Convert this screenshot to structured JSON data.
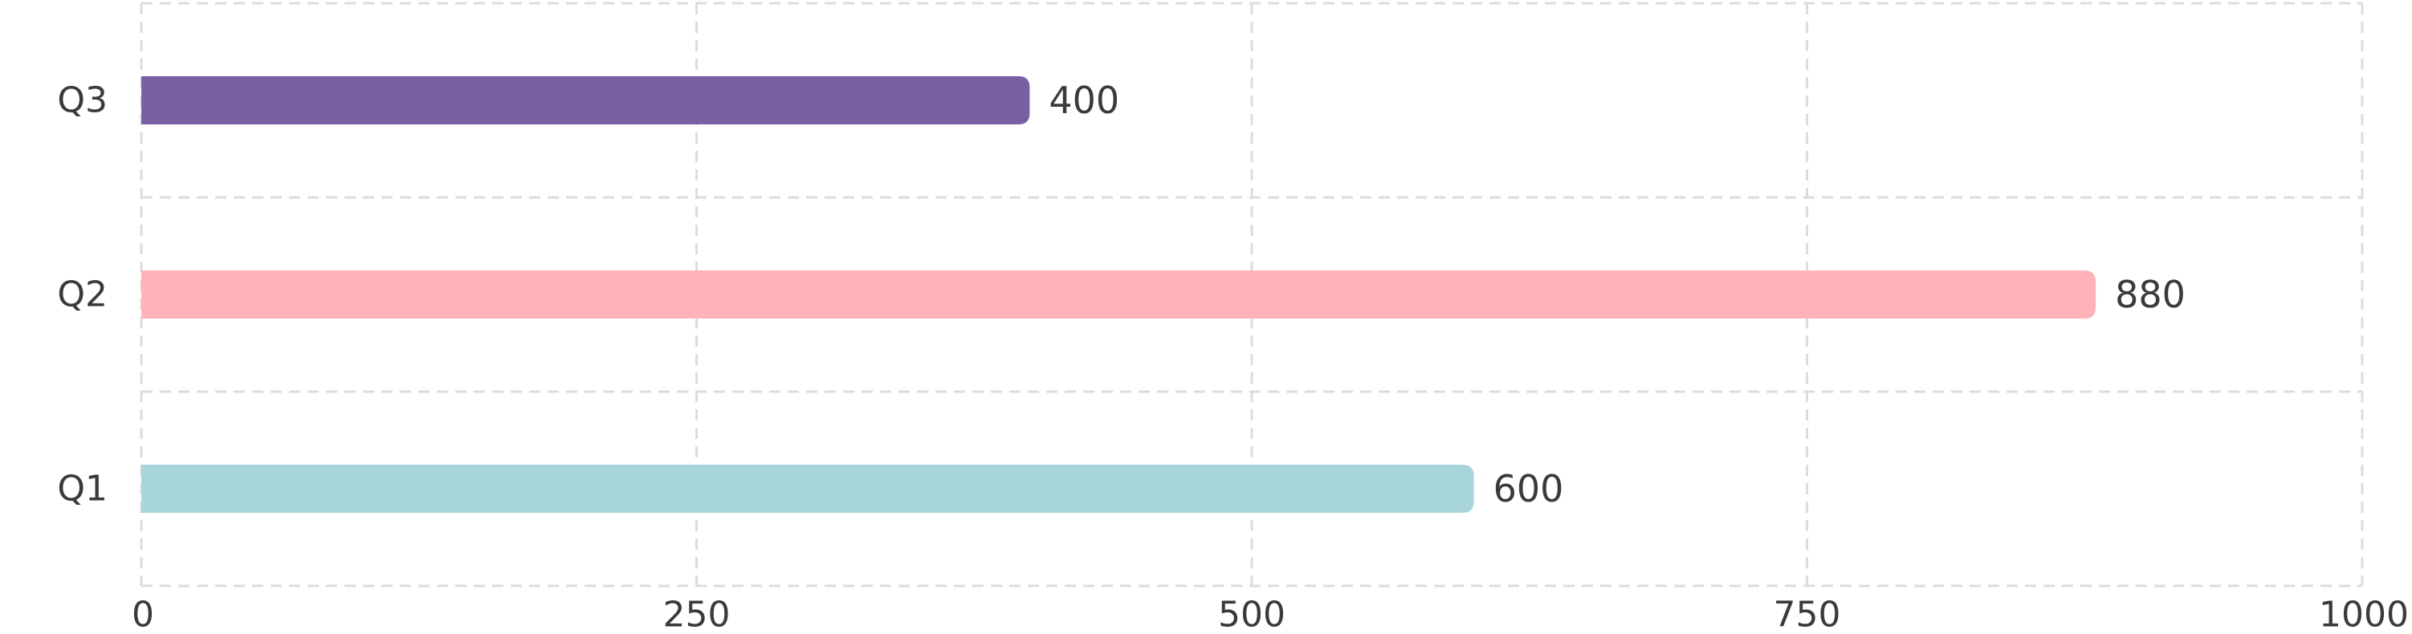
{
  "chart_data": {
    "type": "bar",
    "orientation": "horizontal",
    "categories": [
      "Q1",
      "Q2",
      "Q3"
    ],
    "values": [
      600,
      880,
      400
    ],
    "colors": [
      "#a8d5d9",
      "#ffb3b9",
      "#7b5fa3"
    ],
    "x_ticks": [
      0,
      250,
      500,
      750,
      1000
    ],
    "xlim": [
      0,
      1000
    ],
    "title": "",
    "xlabel": "",
    "ylabel": "",
    "grid": true,
    "data_labels": true
  }
}
